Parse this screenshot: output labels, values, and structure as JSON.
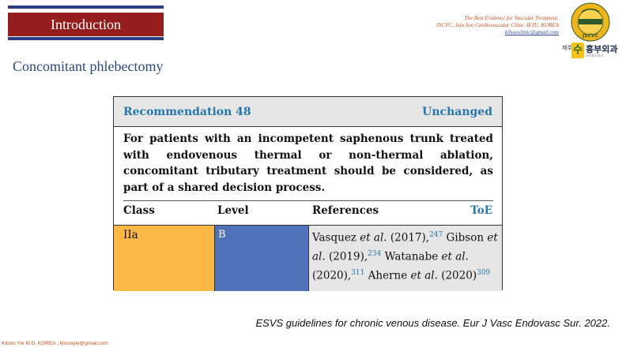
{
  "header": {
    "title": "Introduction",
    "clinic_line1": "The Best Evidence for Vascular Treatment.",
    "clinic_line2": "JSCVC, Jeju Soo Cardiovascular Clinic JEJU, KOREA",
    "clinic_email": "kilsooclinic@gmail.com"
  },
  "logo": {
    "icon": "jscvc-seal-icon",
    "ring_text": "JSCVC",
    "brand_prefix": "제주",
    "brand_mark": "수",
    "brand_name": "흉부외과",
    "brand_sub": "제주흉부외과"
  },
  "subtitle": "Concomitant phlebectomy",
  "recommendation": {
    "number_label": "Recommendation 48",
    "status": "Unchanged",
    "text": "For patients with an incompetent saphenous trunk treated with endovenous thermal or non-thermal ablation, concomitant tributary treatment should be considered, as part of a shared decision process.",
    "columns": [
      "Class",
      "Level",
      "References",
      "ToE"
    ],
    "class": "IIa",
    "level": "B",
    "refs": [
      {
        "author": "Vasquez ",
        "etal": "et al.",
        "year": " (2017),",
        "ref": "247"
      },
      {
        "author": " Gibson ",
        "etal": "et al.",
        "year": " (2019),",
        "ref": "234"
      },
      {
        "author": " Watanabe ",
        "etal": "et al.",
        "year": " (2020),",
        "ref": "311"
      },
      {
        "author": " Aherne ",
        "etal": "et al.",
        "year": " (2020)",
        "ref": "309"
      }
    ]
  },
  "citation": "ESVS guidelines for chronic venous disease. Eur J Vasc Endovasc Sur. 2022.",
  "footer": "Kilsoo Yie M.D. KOREA , kilsooyie@gmail.com",
  "colors": {
    "banner_red": "#951d1d",
    "banner_blue": "#2b3f86",
    "accent_blue": "#2676ad",
    "class_fill": "#fbb844",
    "level_fill": "#4f71b9"
  }
}
